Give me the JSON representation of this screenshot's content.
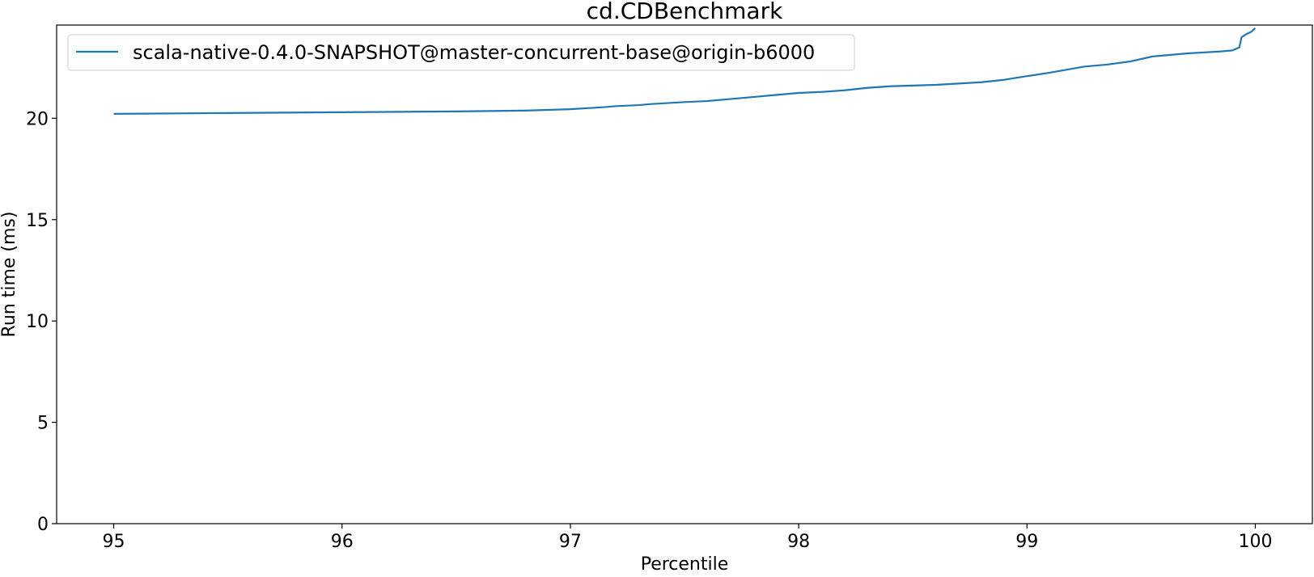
{
  "chart_data": {
    "type": "line",
    "title": "cd.CDBenchmark",
    "xlabel": "Percentile",
    "ylabel": "Run time (ms)",
    "xlim": [
      94.75,
      100.25
    ],
    "ylim": [
      0,
      24.6
    ],
    "xticks": [
      95,
      96,
      97,
      98,
      99,
      100
    ],
    "yticks": [
      0,
      5,
      10,
      15,
      20
    ],
    "grid": false,
    "legend_position": "top-left",
    "series": [
      {
        "name": "scala-native-0.4.0-SNAPSHOT@master-concurrent-base@origin-b6000",
        "color": "#1f77b4",
        "points": [
          [
            95.0,
            20.22
          ],
          [
            95.5,
            20.26
          ],
          [
            96.0,
            20.3
          ],
          [
            96.5,
            20.34
          ],
          [
            96.8,
            20.38
          ],
          [
            97.0,
            20.45
          ],
          [
            97.15,
            20.55
          ],
          [
            97.2,
            20.6
          ],
          [
            97.3,
            20.65
          ],
          [
            97.35,
            20.7
          ],
          [
            97.5,
            20.8
          ],
          [
            97.6,
            20.85
          ],
          [
            97.7,
            20.95
          ],
          [
            97.8,
            21.05
          ],
          [
            97.9,
            21.15
          ],
          [
            98.0,
            21.25
          ],
          [
            98.1,
            21.3
          ],
          [
            98.2,
            21.38
          ],
          [
            98.3,
            21.5
          ],
          [
            98.4,
            21.58
          ],
          [
            98.6,
            21.65
          ],
          [
            98.8,
            21.78
          ],
          [
            98.9,
            21.9
          ],
          [
            99.0,
            22.08
          ],
          [
            99.1,
            22.25
          ],
          [
            99.2,
            22.45
          ],
          [
            99.25,
            22.55
          ],
          [
            99.35,
            22.65
          ],
          [
            99.45,
            22.8
          ],
          [
            99.55,
            23.05
          ],
          [
            99.7,
            23.2
          ],
          [
            99.85,
            23.3
          ],
          [
            99.9,
            23.35
          ],
          [
            99.93,
            23.5
          ],
          [
            99.94,
            24.0
          ],
          [
            99.96,
            24.15
          ],
          [
            99.98,
            24.25
          ],
          [
            100.0,
            24.45
          ]
        ]
      }
    ]
  }
}
